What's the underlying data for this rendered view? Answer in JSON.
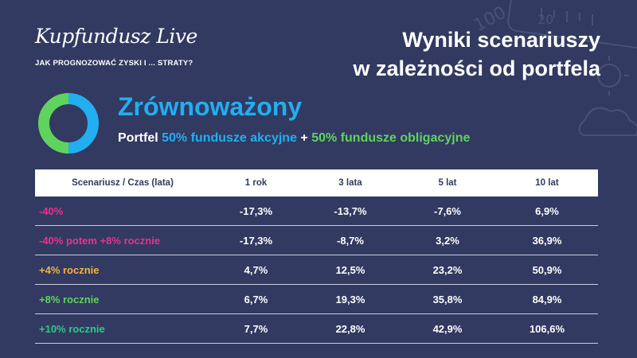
{
  "brand": {
    "name": "Kupfundusz Live",
    "tagline": "JAK PROGNOZOWAĆ ZYSKI I ... STRATY?"
  },
  "headline": {
    "line1": "Wyniki scenariuszy",
    "line2": "w zależności od portfela"
  },
  "portfolio": {
    "name": "Zrównoważony",
    "desc_prefix": "Portfel",
    "part1": "50% fundusze akcyjne",
    "plus": "+",
    "part2": "50% fundusze obligacyjne",
    "allocation": {
      "equity_fraction": 0.5,
      "bond_fraction": 0.5
    },
    "colors": {
      "equity": "#22aef0",
      "bonds": "#5fd35e"
    }
  },
  "table": {
    "headers": [
      "Scenariusz / Czas (lata)",
      "1 rok",
      "3 lata",
      "5 lat",
      "10 lat"
    ],
    "rows": [
      {
        "scenario": "-40%",
        "color": "#e8318f",
        "values": [
          "-17,3%",
          "-13,7%",
          "-7,6%",
          "6,9%"
        ]
      },
      {
        "scenario": "-40% potem +8% rocznie",
        "color": "#e8318f",
        "values": [
          "-17,3%",
          "-8,7%",
          "3,2%",
          "36,9%"
        ]
      },
      {
        "scenario": "+4% rocznie",
        "color": "#f4b33d",
        "values": [
          "4,7%",
          "12,5%",
          "23,2%",
          "50,9%"
        ]
      },
      {
        "scenario": "+8% rocznie",
        "color": "#5fd35e",
        "values": [
          "6,7%",
          "19,3%",
          "35,8%",
          "84,9%"
        ]
      },
      {
        "scenario": "+10% rocznie",
        "color": "#2ec98a",
        "values": [
          "7,7%",
          "22,8%",
          "42,9%",
          "106,6%"
        ]
      }
    ]
  }
}
